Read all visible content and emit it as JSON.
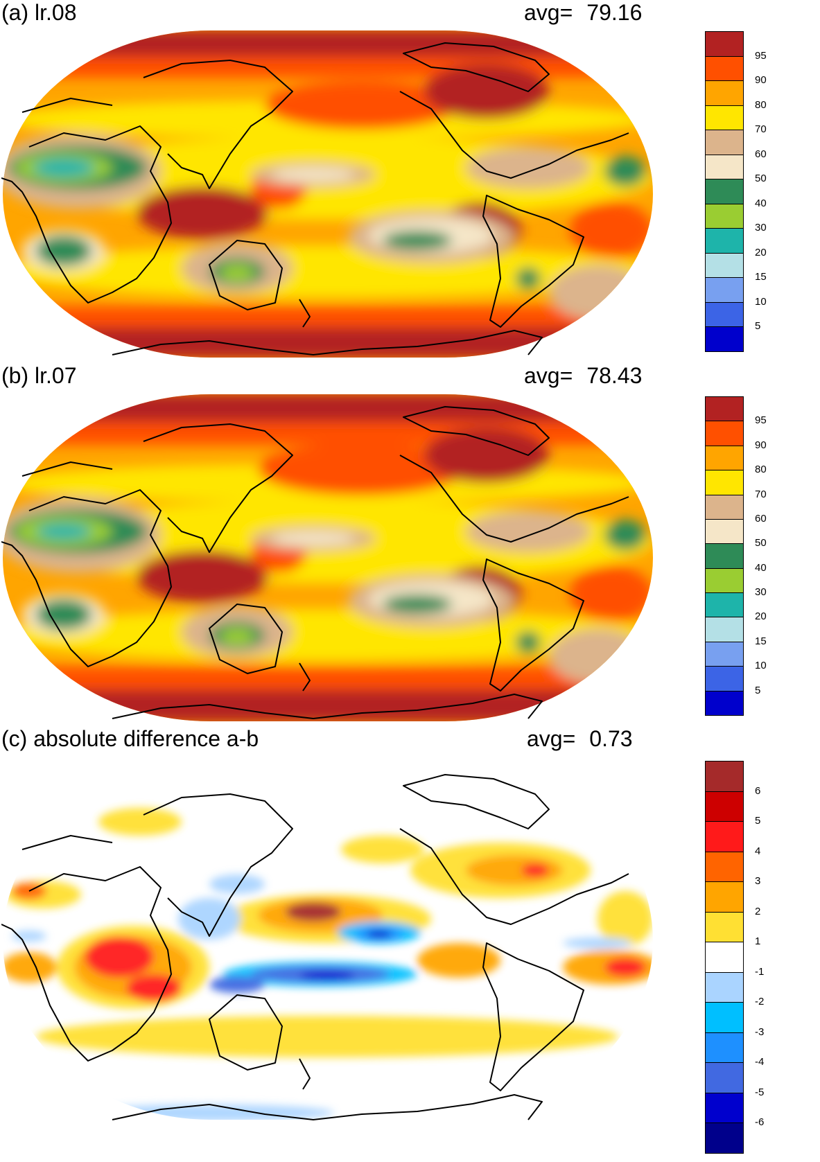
{
  "panels": [
    {
      "id": "a",
      "title": "(a) lr.08",
      "avg_label": "avg=",
      "avg_value": "79.16",
      "colorbar": {
        "colors": [
          "#0000cc",
          "#3c64e6",
          "#78a0f0",
          "#b4e0e6",
          "#1eb4aa",
          "#9acd32",
          "#2e8b57",
          "#f5e6c8",
          "#dcb48c",
          "#ffe600",
          "#ffa500",
          "#ff5000",
          "#b22222"
        ],
        "labels": [
          "5",
          "10",
          "15",
          "20",
          "30",
          "40",
          "50",
          "60",
          "70",
          "80",
          "90",
          "95"
        ]
      }
    },
    {
      "id": "b",
      "title": "(b) lr.07",
      "avg_label": "avg=",
      "avg_value": "78.43",
      "colorbar": {
        "colors": [
          "#0000cc",
          "#3c64e6",
          "#78a0f0",
          "#b4e0e6",
          "#1eb4aa",
          "#9acd32",
          "#2e8b57",
          "#f5e6c8",
          "#dcb48c",
          "#ffe600",
          "#ffa500",
          "#ff5000",
          "#b22222"
        ],
        "labels": [
          "5",
          "10",
          "15",
          "20",
          "30",
          "40",
          "50",
          "60",
          "70",
          "80",
          "90",
          "95"
        ]
      }
    },
    {
      "id": "c",
      "title": "(c) absolute difference a-b",
      "avg_label": "avg=",
      "avg_value": "0.73",
      "colorbar": {
        "colors": [
          "#00008b",
          "#0000cd",
          "#4169e1",
          "#1e90ff",
          "#00bfff",
          "#aad4ff",
          "#ffffff",
          "#ffe033",
          "#ffa500",
          "#ff6400",
          "#ff1a1a",
          "#cd0000",
          "#a52a2a"
        ],
        "labels": [
          "-6",
          "-5",
          "-4",
          "-3",
          "-2",
          "-1",
          "1",
          "2",
          "3",
          "4",
          "5",
          "6"
        ]
      }
    }
  ]
}
